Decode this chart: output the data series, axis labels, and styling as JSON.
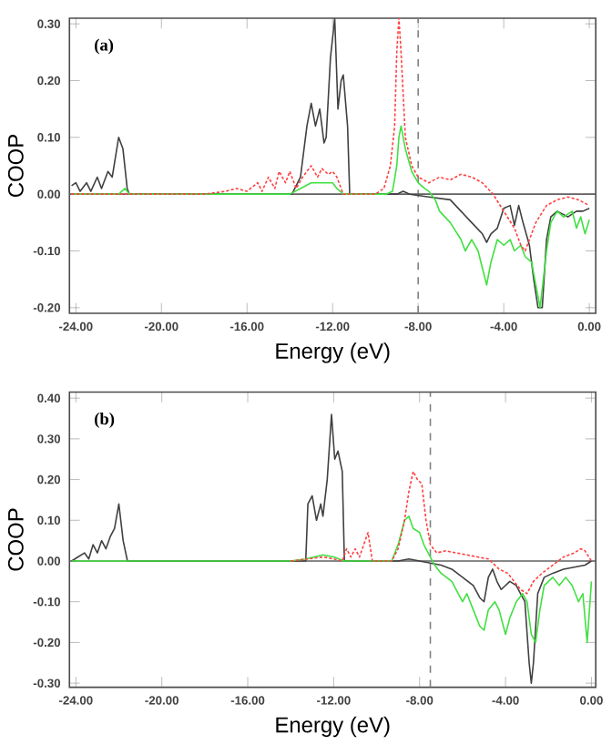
{
  "chart_data": [
    {
      "type": "line",
      "xlabel": "Energy (eV)",
      "ylabel": "COOP",
      "annotations": [
        "(a)"
      ],
      "xlim": [
        -24.3,
        0.3
      ],
      "ylim": [
        -0.21,
        0.31
      ],
      "xticks": [
        {
          "value": -24,
          "label": "-24.00"
        },
        {
          "value": -20,
          "label": "-20.00"
        },
        {
          "value": -16,
          "label": "-16.00"
        },
        {
          "value": -12,
          "label": "-12.00"
        },
        {
          "value": -8,
          "label": "-8.00"
        },
        {
          "value": -4,
          "label": "-4.00"
        },
        {
          "value": 0,
          "label": "0.00"
        }
      ],
      "yticks": [
        {
          "value": -0.2,
          "label": "-0.20"
        },
        {
          "value": -0.1,
          "label": "-0.10"
        },
        {
          "value": 0,
          "label": "0.00"
        },
        {
          "value": 0.1,
          "label": "0.10"
        },
        {
          "value": 0.2,
          "label": "0.20"
        },
        {
          "value": 0.3,
          "label": "0.30"
        }
      ],
      "ref_lines": [
        {
          "axis": "x",
          "value": -8.0,
          "color": "#808080",
          "line_style": "dashed"
        },
        {
          "axis": "y",
          "value": 0,
          "color": "#606060",
          "line_style": "solid"
        }
      ],
      "series": [
        {
          "color": "#404040",
          "line_style": "solid",
          "x": [
            -24.2,
            -24.0,
            -23.8,
            -23.5,
            -23.3,
            -23.0,
            -22.8,
            -22.5,
            -22.3,
            -22.0,
            -21.8,
            -21.6,
            -21.5,
            -13.9,
            -13.5,
            -13.2,
            -13.0,
            -12.8,
            -12.6,
            -12.4,
            -12.3,
            -12.1,
            -11.9,
            -11.75,
            -11.6,
            -11.5,
            -11.3,
            -11.2,
            -9.0,
            -8.7,
            -8.4,
            -7.5,
            -6.5,
            -6.0,
            -5.5,
            -5.0,
            -4.8,
            -4.6,
            -4.3,
            -4.0,
            -3.7,
            -3.5,
            -3.3,
            -3.1,
            -2.8,
            -2.6,
            -2.4,
            -2.2,
            -2.0,
            -1.8,
            -1.5,
            -1.0,
            -0.6,
            -0.3,
            0.0
          ],
          "values": [
            0.015,
            0.02,
            0.005,
            0.02,
            0.005,
            0.03,
            0.01,
            0.04,
            0.03,
            0.1,
            0.08,
            0.01,
            0,
            0,
            0.03,
            0.12,
            0.16,
            0.12,
            0.15,
            0.09,
            0.1,
            0.24,
            0.31,
            0.15,
            0.2,
            0.21,
            0.12,
            0,
            0,
            0.005,
            0,
            -0.005,
            -0.01,
            -0.03,
            -0.05,
            -0.07,
            -0.085,
            -0.07,
            -0.06,
            -0.025,
            -0.02,
            -0.055,
            -0.02,
            -0.05,
            -0.09,
            -0.15,
            -0.2,
            -0.2,
            -0.08,
            -0.04,
            -0.03,
            -0.04,
            -0.03,
            -0.03,
            -0.025
          ]
        },
        {
          "color": "#ff4040",
          "line_style": "dotted",
          "x": [
            -24.2,
            -18.0,
            -17.0,
            -16.5,
            -16.0,
            -15.5,
            -15.3,
            -15.0,
            -14.7,
            -14.5,
            -14.2,
            -14.0,
            -13.7,
            -13.4,
            -13.0,
            -12.7,
            -12.5,
            -12.2,
            -12.0,
            -11.8,
            -11.5,
            -10.0,
            -9.6,
            -9.3,
            -9.1,
            -9.0,
            -8.9,
            -8.8,
            -8.6,
            -8.3,
            -8.0,
            -7.5,
            -7.0,
            -6.5,
            -6.0,
            -5.5,
            -5.0,
            -4.5,
            -4.0,
            -3.5,
            -3.2,
            -3.0,
            -2.8,
            -2.5,
            -2.0,
            -1.5,
            -1.0,
            -0.5,
            0.0
          ],
          "values": [
            0,
            0,
            0.005,
            0.01,
            0.005,
            0.02,
            0.005,
            0.03,
            0.01,
            0.04,
            0.02,
            0.04,
            0.01,
            0.03,
            0.05,
            0.03,
            0.045,
            0.035,
            0.04,
            0.03,
            0,
            0,
            0.01,
            0.05,
            0.12,
            0.25,
            0.31,
            0.25,
            0.1,
            0.05,
            0.03,
            0.02,
            0.03,
            0.025,
            0.035,
            0.03,
            0.02,
            0,
            -0.03,
            -0.06,
            -0.09,
            -0.1,
            -0.08,
            -0.05,
            -0.02,
            -0.01,
            -0.005,
            -0.01,
            -0.02
          ]
        },
        {
          "color": "#40e040",
          "line_style": "solid",
          "x": [
            -24.2,
            -22.0,
            -21.7,
            -21.5,
            -14.0,
            -13.5,
            -13.0,
            -12.5,
            -12.0,
            -11.8,
            -11.5,
            -9.5,
            -9.2,
            -9.0,
            -8.9,
            -8.8,
            -8.6,
            -8.3,
            -8.0,
            -7.7,
            -7.5,
            -7.2,
            -7.0,
            -6.5,
            -6.0,
            -5.8,
            -5.5,
            -5.2,
            -5.0,
            -4.8,
            -4.6,
            -4.3,
            -4.0,
            -3.7,
            -3.5,
            -3.2,
            -3.0,
            -2.7,
            -2.5,
            -2.3,
            -2.0,
            -1.8,
            -1.5,
            -1.2,
            -0.8,
            -0.6,
            -0.4,
            -0.2,
            0.0
          ],
          "values": [
            0,
            0,
            0.01,
            0,
            0,
            0.01,
            0.02,
            0.02,
            0.02,
            0.01,
            0,
            0,
            0.005,
            0.05,
            0.1,
            0.12,
            0.08,
            0.04,
            0.02,
            0.01,
            0.005,
            -0.01,
            -0.03,
            -0.05,
            -0.08,
            -0.1,
            -0.08,
            -0.1,
            -0.13,
            -0.16,
            -0.12,
            -0.08,
            -0.09,
            -0.08,
            -0.1,
            -0.09,
            -0.11,
            -0.12,
            -0.16,
            -0.2,
            -0.1,
            -0.05,
            -0.03,
            -0.04,
            -0.03,
            -0.06,
            -0.04,
            -0.07,
            -0.045
          ]
        }
      ]
    },
    {
      "type": "line",
      "xlabel": "Energy (eV)",
      "ylabel": "COOP",
      "annotations": [
        "(b)"
      ],
      "xlim": [
        -24.3,
        0.2
      ],
      "ylim": [
        -0.31,
        0.415
      ],
      "xticks": [
        {
          "value": -24,
          "label": "-24.00"
        },
        {
          "value": -20,
          "label": "-20.00"
        },
        {
          "value": -16,
          "label": "-16.00"
        },
        {
          "value": -12,
          "label": "-12.00"
        },
        {
          "value": -8,
          "label": "-8.00"
        },
        {
          "value": -4,
          "label": "-4.00"
        },
        {
          "value": 0,
          "label": "0.00"
        }
      ],
      "yticks": [
        {
          "value": -0.3,
          "label": "-0.30"
        },
        {
          "value": -0.2,
          "label": "-0.20"
        },
        {
          "value": -0.1,
          "label": "-0.10"
        },
        {
          "value": 0,
          "label": "0.00"
        },
        {
          "value": 0.1,
          "label": "0.10"
        },
        {
          "value": 0.2,
          "label": "0.20"
        },
        {
          "value": 0.3,
          "label": "0.30"
        },
        {
          "value": 0.4,
          "label": "0.40"
        }
      ],
      "ref_lines": [
        {
          "axis": "x",
          "value": -7.5,
          "color": "#808080",
          "line_style": "dashed"
        },
        {
          "axis": "y",
          "value": 0,
          "color": "#606060",
          "line_style": "solid"
        }
      ],
      "series": [
        {
          "color": "#404040",
          "line_style": "solid",
          "x": [
            -24.2,
            -23.9,
            -23.6,
            -23.4,
            -23.2,
            -23.0,
            -22.8,
            -22.6,
            -22.4,
            -22.2,
            -22.0,
            -21.8,
            -21.6,
            -13.3,
            -13.2,
            -13.0,
            -12.8,
            -12.6,
            -12.5,
            -12.3,
            -12.1,
            -11.95,
            -11.8,
            -11.6,
            -11.5,
            -9.0,
            -8.5,
            -8.0,
            -7.5,
            -7.0,
            -6.5,
            -6.0,
            -5.5,
            -5.2,
            -5.0,
            -4.8,
            -4.6,
            -4.4,
            -4.2,
            -4.0,
            -3.8,
            -3.5,
            -3.3,
            -3.1,
            -2.9,
            -2.8,
            -2.7,
            -2.5,
            -2.2,
            -1.8,
            -1.3,
            -0.8,
            -0.3,
            0.0
          ],
          "values": [
            0,
            0.01,
            0.02,
            0.005,
            0.04,
            0.02,
            0.05,
            0.03,
            0.06,
            0.08,
            0.14,
            0.05,
            0,
            0,
            0.14,
            0.16,
            0.1,
            0.14,
            0.11,
            0.2,
            0.36,
            0.25,
            0.27,
            0.22,
            0,
            0,
            0.005,
            0,
            -0.005,
            -0.01,
            -0.02,
            -0.04,
            -0.06,
            -0.09,
            -0.1,
            -0.04,
            -0.02,
            -0.05,
            -0.07,
            -0.06,
            -0.05,
            -0.06,
            -0.08,
            -0.1,
            -0.25,
            -0.3,
            -0.25,
            -0.08,
            -0.04,
            -0.03,
            -0.02,
            -0.015,
            -0.01,
            0
          ]
        },
        {
          "color": "#ff4040",
          "line_style": "dotted",
          "x": [
            -14.0,
            -13.2,
            -12.5,
            -12.0,
            -11.6,
            -11.4,
            -11.2,
            -11.0,
            -10.8,
            -10.6,
            -10.4,
            -10.2,
            -9.3,
            -9.0,
            -8.7,
            -8.5,
            -8.3,
            -8.1,
            -7.9,
            -7.7,
            -7.5,
            -7.2,
            -6.8,
            -6.3,
            -5.8,
            -5.3,
            -4.8,
            -4.3,
            -3.9,
            -3.6,
            -3.3,
            -3.0,
            -2.7,
            -2.3,
            -1.8,
            -1.3,
            -0.8,
            -0.5,
            -0.3,
            0.0
          ],
          "values": [
            0,
            0.005,
            0.01,
            0.005,
            0,
            0.03,
            0.01,
            0.03,
            0.01,
            0.04,
            0.07,
            0,
            0,
            0.03,
            0.1,
            0.17,
            0.22,
            0.2,
            0.19,
            0.1,
            0.04,
            0.02,
            0.025,
            0.02,
            0.015,
            0.01,
            0.005,
            -0.02,
            -0.03,
            -0.05,
            -0.07,
            -0.08,
            -0.05,
            -0.03,
            -0.01,
            0.01,
            0.02,
            0.03,
            0.025,
            0
          ]
        },
        {
          "color": "#40e040",
          "line_style": "solid",
          "x": [
            -24.2,
            -14.0,
            -13.3,
            -12.5,
            -12.0,
            -11.5,
            -9.3,
            -9.0,
            -8.7,
            -8.5,
            -8.3,
            -8.0,
            -7.8,
            -7.5,
            -7.3,
            -7.0,
            -6.5,
            -6.2,
            -6.0,
            -5.8,
            -5.5,
            -5.2,
            -5.0,
            -4.8,
            -4.5,
            -4.3,
            -4.0,
            -3.8,
            -3.5,
            -3.2,
            -3.0,
            -2.8,
            -2.6,
            -2.4,
            -2.2,
            -1.8,
            -1.5,
            -1.2,
            -0.9,
            -0.6,
            -0.4,
            -0.2,
            0.0
          ],
          "values": [
            0,
            0,
            0.005,
            0.015,
            0.01,
            0,
            0,
            0.04,
            0.1,
            0.11,
            0.08,
            0.07,
            0.04,
            0.01,
            -0.01,
            -0.03,
            -0.05,
            -0.08,
            -0.1,
            -0.08,
            -0.12,
            -0.16,
            -0.17,
            -0.12,
            -0.1,
            -0.12,
            -0.18,
            -0.14,
            -0.1,
            -0.08,
            -0.1,
            -0.18,
            -0.2,
            -0.12,
            -0.06,
            -0.04,
            -0.06,
            -0.04,
            -0.06,
            -0.1,
            -0.08,
            -0.2,
            -0.05
          ]
        }
      ]
    }
  ]
}
